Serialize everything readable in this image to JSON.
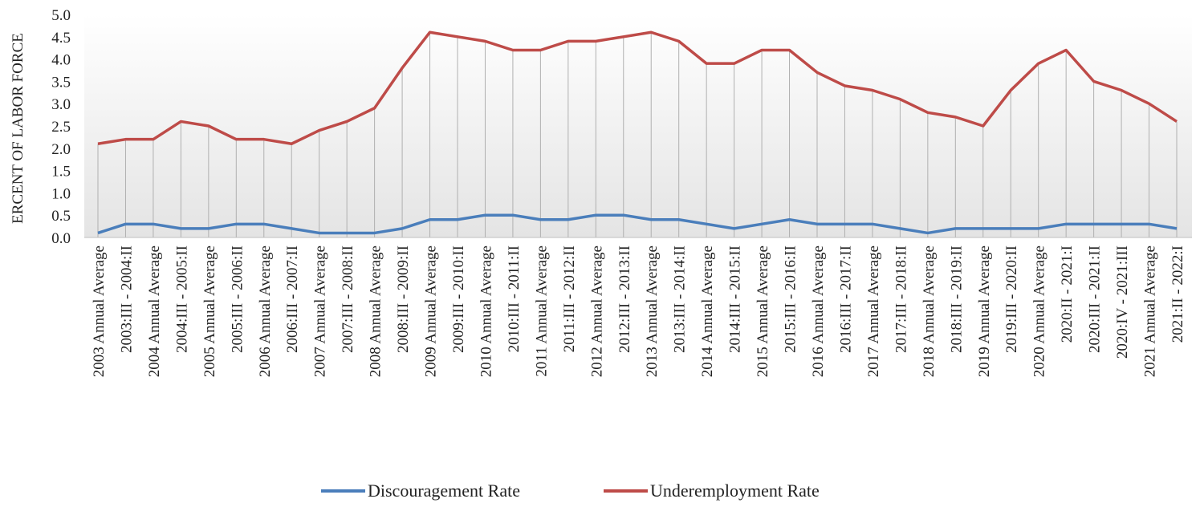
{
  "chart_data": {
    "type": "line",
    "y_label": "ERCENT OF LABOR FORCE",
    "categories": [
      "2003  Annual Average",
      "2003:III  - 2004:II",
      "2004  Annual Average",
      "2004:III  - 2005:II",
      "2005  Annual Average",
      "2005:III  - 2006:II",
      "2006  Annual Average",
      "2006:III  - 2007:II",
      "2007  Annual Average",
      "2007:III  - 2008:II",
      "2008  Annual Average",
      "2008:III  - 2009:II",
      "2009  Annual Average",
      "2009:III  - 2010:II",
      "2010  Annual Average",
      "2010:III  - 2011:II",
      "2011  Annual Average",
      "2011:III  - 2012:II",
      "2012  Annual Average",
      "2012:III  - 2013:II",
      "2013  Annual Average",
      "2013:III  - 2014:II",
      "2014  Annual Average",
      "2014:III  - 2015:II",
      "2015  Annual Average",
      "2015:III  - 2016:II",
      "2016  Annual Average",
      "2016:III  - 2017:II",
      "2017  Annual Average",
      "2017:III  - 2018:II",
      "2018  Annual Average",
      "2018:III  - 2019:II",
      "2019  Annual Average",
      "2019:III  - 2020:II",
      "2020  Annual Average",
      "2020:II  - 2021:I",
      "2020:III  - 2021:II",
      "2020:IV  - 2021:III",
      "2021  Annual Average",
      "2021:II  - 2022:I"
    ],
    "series": [
      {
        "name": "Discouragement Rate",
        "color": "#4a7ebb",
        "values": [
          0.1,
          0.3,
          0.3,
          0.2,
          0.2,
          0.3,
          0.3,
          0.2,
          0.1,
          0.1,
          0.1,
          0.2,
          0.4,
          0.4,
          0.5,
          0.5,
          0.4,
          0.4,
          0.5,
          0.5,
          0.4,
          0.4,
          0.3,
          0.2,
          0.3,
          0.4,
          0.3,
          0.3,
          0.3,
          0.2,
          0.1,
          0.2,
          0.2,
          0.2,
          0.2,
          0.3,
          0.3,
          0.3,
          0.3,
          0.2
        ]
      },
      {
        "name": "Underemployment Rate",
        "color": "#be4b48",
        "values": [
          2.1,
          2.2,
          2.2,
          2.6,
          2.5,
          2.2,
          2.2,
          2.1,
          2.4,
          2.6,
          2.9,
          3.8,
          4.6,
          4.5,
          4.4,
          4.2,
          4.2,
          4.4,
          4.4,
          4.5,
          4.6,
          4.4,
          3.9,
          3.9,
          4.2,
          4.2,
          3.7,
          3.4,
          3.3,
          3.1,
          2.8,
          2.7,
          2.5,
          3.3,
          3.9,
          4.2,
          3.5,
          3.3,
          3.0,
          2.6
        ]
      }
    ],
    "ylim": [
      0,
      5
    ],
    "yticks": [
      {
        "value": 0,
        "label": "0.0"
      },
      0.5,
      {
        "value": 1,
        "label": "1.0"
      },
      1.5,
      {
        "value": 2,
        "label": "2.0"
      },
      2.5,
      {
        "value": 3,
        "label": "3.0"
      },
      3.5,
      {
        "value": 4,
        "label": "4.0"
      },
      4.5,
      {
        "value": 5,
        "label": "5.0"
      }
    ],
    "drop_lines": true
  }
}
